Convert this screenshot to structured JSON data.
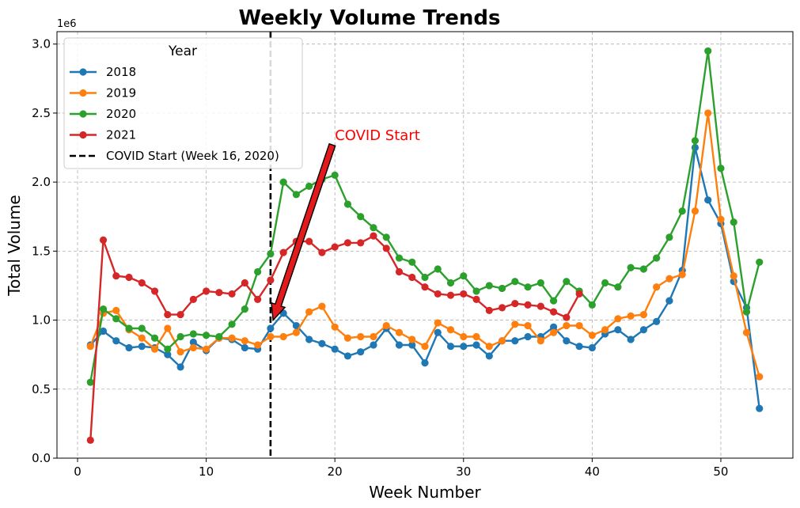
{
  "chart_data": {
    "type": "line",
    "title": "Weekly Volume Trends",
    "xlabel": "Week Number",
    "ylabel": "Total Volume",
    "y_scale_label": "1e6",
    "xlim": [
      -1.6,
      55.6
    ],
    "ylim": [
      0,
      3.09
    ],
    "xticks": [
      0,
      10,
      20,
      30,
      40,
      50
    ],
    "yticks": [
      0.0,
      0.5,
      1.0,
      1.5,
      2.0,
      2.5,
      3.0
    ],
    "ytick_labels": [
      "0.0",
      "0.5",
      "1.0",
      "1.5",
      "2.0",
      "2.5",
      "3.0"
    ],
    "grid": true,
    "legend": {
      "title": "Year",
      "placement": "top-left"
    },
    "series": [
      {
        "name": "2018",
        "color": "#1f77b4",
        "x": [
          1,
          2,
          3,
          4,
          5,
          6,
          7,
          8,
          9,
          10,
          11,
          12,
          13,
          14,
          15,
          16,
          17,
          18,
          19,
          20,
          21,
          22,
          23,
          24,
          25,
          26,
          27,
          28,
          29,
          30,
          31,
          32,
          33,
          34,
          35,
          36,
          37,
          38,
          39,
          40,
          41,
          42,
          43,
          44,
          45,
          46,
          47,
          48,
          49,
          50,
          51,
          52,
          53
        ],
        "values": [
          0.82,
          0.92,
          0.85,
          0.8,
          0.81,
          0.8,
          0.75,
          0.66,
          0.84,
          0.78,
          0.87,
          0.86,
          0.8,
          0.79,
          0.94,
          1.05,
          0.96,
          0.86,
          0.83,
          0.79,
          0.74,
          0.77,
          0.82,
          0.94,
          0.82,
          0.82,
          0.69,
          0.91,
          0.81,
          0.81,
          0.82,
          0.74,
          0.85,
          0.85,
          0.88,
          0.88,
          0.95,
          0.85,
          0.81,
          0.8,
          0.9,
          0.93,
          0.86,
          0.93,
          0.99,
          1.14,
          1.36,
          2.25,
          1.87,
          1.7,
          1.28,
          1.09,
          0.36
        ]
      },
      {
        "name": "2019",
        "color": "#ff7f0e",
        "x": [
          1,
          2,
          3,
          4,
          5,
          6,
          7,
          8,
          9,
          10,
          11,
          12,
          13,
          14,
          15,
          16,
          17,
          18,
          19,
          20,
          21,
          22,
          23,
          24,
          25,
          26,
          27,
          28,
          29,
          30,
          31,
          32,
          33,
          34,
          35,
          36,
          37,
          38,
          39,
          40,
          41,
          42,
          43,
          44,
          45,
          46,
          47,
          48,
          49,
          50,
          51,
          52,
          53
        ],
        "values": [
          0.81,
          1.05,
          1.07,
          0.93,
          0.87,
          0.79,
          0.94,
          0.77,
          0.8,
          0.79,
          0.87,
          0.87,
          0.85,
          0.82,
          0.88,
          0.88,
          0.91,
          1.06,
          1.1,
          0.95,
          0.87,
          0.88,
          0.88,
          0.96,
          0.91,
          0.86,
          0.81,
          0.98,
          0.93,
          0.88,
          0.88,
          0.81,
          0.85,
          0.97,
          0.96,
          0.85,
          0.91,
          0.96,
          0.96,
          0.89,
          0.93,
          1.01,
          1.03,
          1.04,
          1.24,
          1.3,
          1.33,
          1.79,
          2.5,
          1.73,
          1.32,
          0.91,
          0.59
        ]
      },
      {
        "name": "2020",
        "color": "#2ca02c",
        "x": [
          1,
          2,
          3,
          4,
          5,
          6,
          7,
          8,
          9,
          10,
          11,
          12,
          13,
          14,
          15,
          16,
          17,
          18,
          19,
          20,
          21,
          22,
          23,
          24,
          25,
          26,
          27,
          28,
          29,
          30,
          31,
          32,
          33,
          34,
          35,
          36,
          37,
          38,
          39,
          40,
          41,
          42,
          43,
          44,
          45,
          46,
          47,
          48,
          49,
          50,
          51,
          52,
          53
        ],
        "values": [
          0.55,
          1.08,
          1.01,
          0.94,
          0.94,
          0.87,
          0.79,
          0.88,
          0.9,
          0.89,
          0.88,
          0.97,
          1.08,
          1.35,
          1.48,
          2.0,
          1.91,
          1.97,
          2.02,
          2.05,
          1.84,
          1.75,
          1.67,
          1.6,
          1.45,
          1.42,
          1.31,
          1.37,
          1.27,
          1.32,
          1.21,
          1.25,
          1.23,
          1.28,
          1.24,
          1.27,
          1.14,
          1.28,
          1.21,
          1.11,
          1.27,
          1.24,
          1.38,
          1.37,
          1.45,
          1.6,
          1.79,
          2.3,
          2.95,
          2.1,
          1.71,
          1.06,
          1.42
        ]
      },
      {
        "name": "2021",
        "color": "#d62728",
        "x": [
          1,
          2,
          3,
          4,
          5,
          6,
          7,
          8,
          9,
          10,
          11,
          12,
          13,
          14,
          15,
          16,
          17,
          18,
          19,
          20,
          21,
          22,
          23,
          24,
          25,
          26,
          27,
          28,
          29,
          30,
          31,
          32,
          33,
          34,
          35,
          36,
          37,
          38,
          39
        ],
        "values": [
          0.13,
          1.58,
          1.32,
          1.31,
          1.27,
          1.21,
          1.04,
          1.04,
          1.15,
          1.21,
          1.2,
          1.19,
          1.27,
          1.15,
          1.29,
          1.49,
          1.57,
          1.57,
          1.49,
          1.53,
          1.56,
          1.56,
          1.61,
          1.52,
          1.35,
          1.31,
          1.24,
          1.19,
          1.18,
          1.19,
          1.15,
          1.07,
          1.09,
          1.12,
          1.11,
          1.1,
          1.06,
          1.02,
          1.19
        ]
      }
    ],
    "reference_line": {
      "name": "COVID Start (Week 16, 2020)",
      "x": 15,
      "color": "#000000",
      "style": "dashed"
    },
    "annotation": {
      "text": "COVID Start",
      "color": "#ff0000",
      "text_x": 20,
      "text_y": 2.35,
      "arrow_from": [
        19.8,
        2.27
      ],
      "arrow_to": [
        15.2,
        1.0
      ]
    }
  }
}
